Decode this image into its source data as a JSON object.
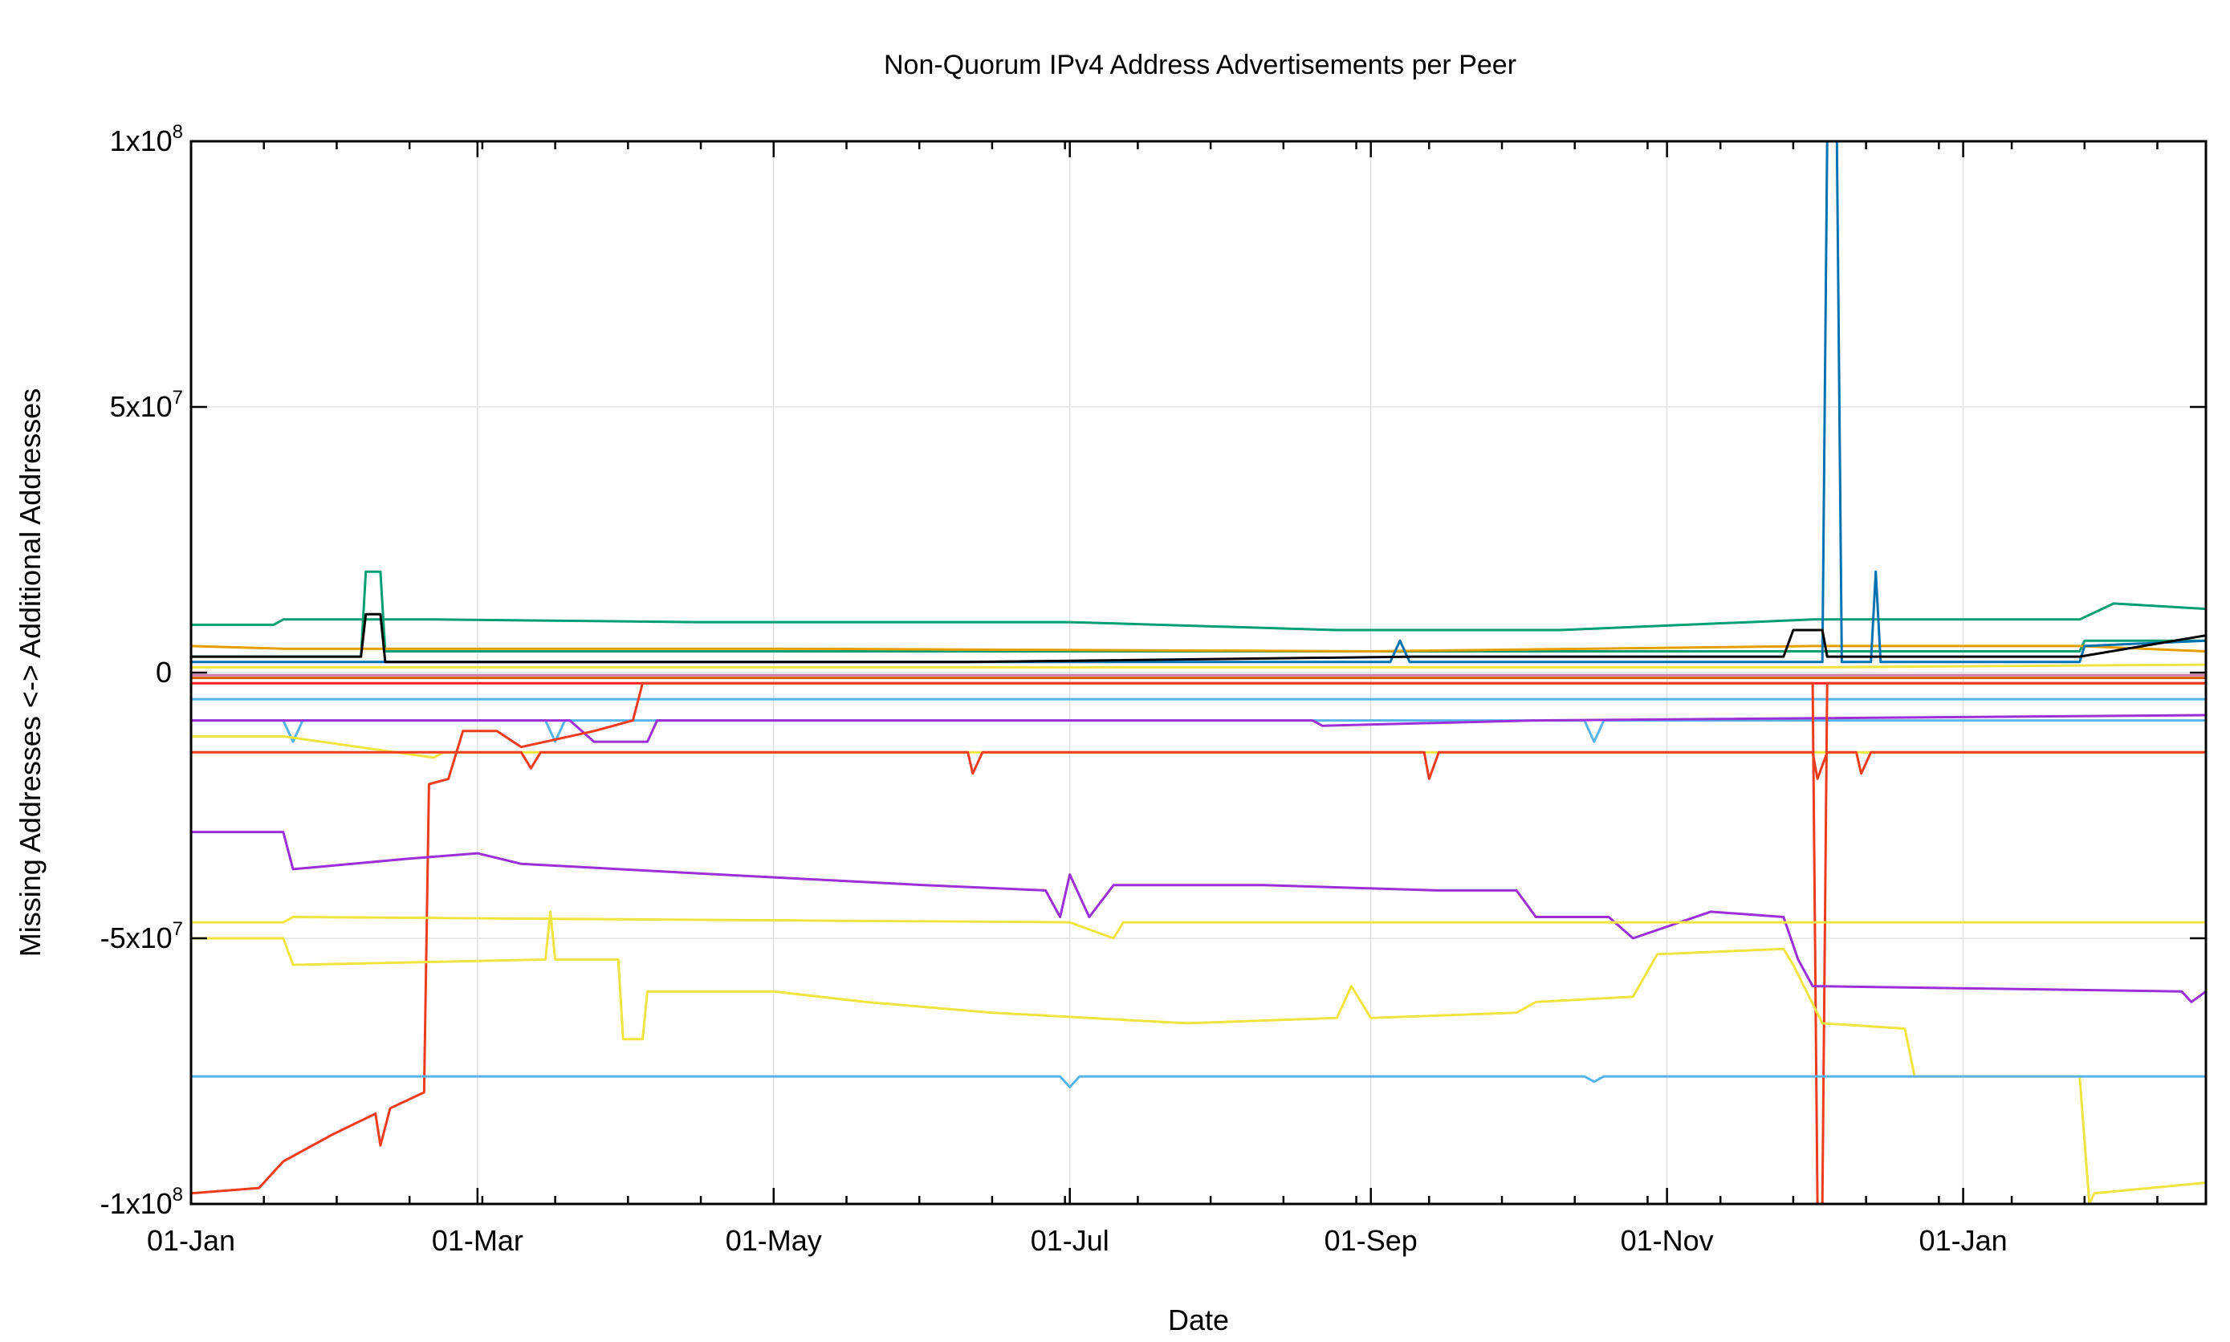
{
  "chart_data": {
    "type": "line",
    "title": "Non-Quorum IPv4 Address Advertisements per Peer",
    "xlabel": "Date",
    "ylabel": "Missing Addresses <-> Additional Addresses",
    "x_range": [
      "2015-01-01",
      "2016-02-20"
    ],
    "ylim": [
      -100000000,
      100000000
    ],
    "grid": true,
    "x_ticks": [
      {
        "date": "2015-01-01",
        "label": "01-Jan"
      },
      {
        "date": "2015-03-01",
        "label": "01-Mar"
      },
      {
        "date": "2015-05-01",
        "label": "01-May"
      },
      {
        "date": "2015-07-01",
        "label": "01-Jul"
      },
      {
        "date": "2015-09-01",
        "label": "01-Sep"
      },
      {
        "date": "2015-11-01",
        "label": "01-Nov"
      },
      {
        "date": "2016-01-01",
        "label": "01-Jan"
      }
    ],
    "y_ticks": [
      {
        "value": 100000000,
        "base": "1x10",
        "exp": "8"
      },
      {
        "value": 50000000,
        "base": "5x10",
        "exp": "7"
      },
      {
        "value": 0,
        "base": "0",
        "exp": ""
      },
      {
        "value": -50000000,
        "base": "-5x10",
        "exp": "7"
      },
      {
        "value": -100000000,
        "base": "-1x10",
        "exp": "8"
      }
    ],
    "series": [
      {
        "color": "#009e73",
        "points": [
          [
            "2015-01-01",
            9000000
          ],
          [
            "2015-01-18",
            9000000
          ],
          [
            "2015-01-20",
            10000000
          ],
          [
            "2015-02-20",
            10000000
          ],
          [
            "2015-04-15",
            9500000
          ],
          [
            "2015-07-01",
            9500000
          ],
          [
            "2015-08-25",
            8000000
          ],
          [
            "2015-10-10",
            8000000
          ],
          [
            "2015-12-01",
            10000000
          ],
          [
            "2016-01-25",
            10000000
          ],
          [
            "2016-02-01",
            13000000
          ],
          [
            "2016-02-20",
            12000000
          ]
        ]
      },
      {
        "color": "#009e73",
        "points": [
          [
            "2015-01-01",
            3000000
          ],
          [
            "2015-02-05",
            3000000
          ],
          [
            "2015-02-06",
            19000000
          ],
          [
            "2015-02-09",
            19000000
          ],
          [
            "2015-02-10",
            4000000
          ],
          [
            "2015-12-15",
            4000000
          ],
          [
            "2016-01-25",
            4000000
          ],
          [
            "2016-01-26",
            6000000
          ],
          [
            "2016-02-20",
            6000000
          ]
        ]
      },
      {
        "color": "#e69f00",
        "points": [
          [
            "2015-01-01",
            5000000
          ],
          [
            "2015-01-20",
            4500000
          ],
          [
            "2015-05-01",
            4500000
          ],
          [
            "2015-09-01",
            4000000
          ],
          [
            "2015-12-01",
            5000000
          ],
          [
            "2016-01-25",
            5000000
          ],
          [
            "2016-02-20",
            4000000
          ]
        ]
      },
      {
        "color": "#0072b2",
        "points": [
          [
            "2015-01-01",
            2000000
          ],
          [
            "2015-09-05",
            2000000
          ],
          [
            "2015-09-07",
            6000000
          ],
          [
            "2015-09-09",
            2000000
          ],
          [
            "2015-12-03",
            2000000
          ],
          [
            "2015-12-04",
            100000000
          ],
          [
            "2015-12-06",
            100000000
          ],
          [
            "2015-12-07",
            2000000
          ],
          [
            "2015-12-13",
            2000000
          ],
          [
            "2015-12-14",
            19000000
          ],
          [
            "2015-12-15",
            2000000
          ],
          [
            "2016-01-25",
            2000000
          ],
          [
            "2016-01-26",
            5000000
          ],
          [
            "2016-02-20",
            6000000
          ]
        ]
      },
      {
        "color": "#000000",
        "points": [
          [
            "2015-01-01",
            3000000
          ],
          [
            "2015-02-05",
            3000000
          ],
          [
            "2015-02-06",
            11000000
          ],
          [
            "2015-02-09",
            11000000
          ],
          [
            "2015-02-10",
            2000000
          ],
          [
            "2015-06-10",
            2000000
          ],
          [
            "2015-09-10",
            3000000
          ],
          [
            "2015-11-25",
            3000000
          ],
          [
            "2015-11-27",
            8000000
          ],
          [
            "2015-12-03",
            8000000
          ],
          [
            "2015-12-04",
            3000000
          ],
          [
            "2016-01-25",
            3000000
          ],
          [
            "2016-02-20",
            7000000
          ]
        ]
      },
      {
        "color": "#f0e442",
        "points": [
          [
            "2015-01-01",
            1000000
          ],
          [
            "2015-12-01",
            1000000
          ],
          [
            "2016-02-20",
            1500000
          ]
        ]
      },
      {
        "color": "#cc79a7",
        "points": [
          [
            "2015-01-01",
            -500000
          ],
          [
            "2016-02-20",
            -500000
          ]
        ]
      },
      {
        "color": "#d55e00",
        "points": [
          [
            "2015-01-01",
            -1000000
          ],
          [
            "2016-02-20",
            -1000000
          ]
        ]
      },
      {
        "color": "#ff1f1f",
        "points": [
          [
            "2015-01-01",
            -2000000
          ],
          [
            "2016-02-20",
            -2000000
          ]
        ]
      },
      {
        "color": "#56b4e9",
        "points": [
          [
            "2015-01-01",
            -9000000
          ],
          [
            "2015-01-20",
            -9000000
          ],
          [
            "2015-01-22",
            -13000000
          ],
          [
            "2015-01-24",
            -9000000
          ],
          [
            "2015-03-15",
            -9000000
          ],
          [
            "2015-03-17",
            -13000000
          ],
          [
            "2015-03-19",
            -9000000
          ],
          [
            "2015-10-15",
            -9000000
          ],
          [
            "2015-10-17",
            -13000000
          ],
          [
            "2015-10-19",
            -9000000
          ],
          [
            "2016-02-20",
            -9000000
          ]
        ]
      },
      {
        "color": "#56b4e9",
        "points": [
          [
            "2015-01-01",
            -5000000
          ],
          [
            "2016-02-20",
            -5000000
          ]
        ]
      },
      {
        "color": "#9b30d9",
        "points": [
          [
            "2015-01-01",
            -9000000
          ],
          [
            "2015-03-20",
            -9000000
          ],
          [
            "2015-03-25",
            -13000000
          ],
          [
            "2015-04-05",
            -13000000
          ],
          [
            "2015-04-07",
            -9000000
          ],
          [
            "2015-08-20",
            -9000000
          ],
          [
            "2015-08-22",
            -10000000
          ],
          [
            "2015-10-05",
            -9000000
          ],
          [
            "2016-02-20",
            -8000000
          ]
        ]
      },
      {
        "color": "#f0e442",
        "points": [
          [
            "2015-01-01",
            -12000000
          ],
          [
            "2015-01-20",
            -12000000
          ],
          [
            "2015-02-20",
            -16000000
          ],
          [
            "2015-02-22",
            -15000000
          ],
          [
            "2016-02-20",
            -15000000
          ]
        ]
      },
      {
        "color": "#f03c1e",
        "points": [
          [
            "2015-01-01",
            -15000000
          ],
          [
            "2015-03-10",
            -15000000
          ],
          [
            "2015-03-12",
            -18000000
          ],
          [
            "2015-03-14",
            -15000000
          ],
          [
            "2015-06-10",
            -15000000
          ],
          [
            "2015-06-11",
            -19000000
          ],
          [
            "2015-06-13",
            -15000000
          ],
          [
            "2015-09-12",
            -15000000
          ],
          [
            "2015-09-13",
            -20000000
          ],
          [
            "2015-09-15",
            -15000000
          ],
          [
            "2015-12-01",
            -15000000
          ],
          [
            "2015-12-02",
            -20000000
          ],
          [
            "2015-12-04",
            -15000000
          ],
          [
            "2015-12-10",
            -15000000
          ],
          [
            "2015-12-11",
            -19000000
          ],
          [
            "2015-12-13",
            -15000000
          ],
          [
            "2016-02-20",
            -15000000
          ]
        ]
      },
      {
        "color": "#f03c1e",
        "points": [
          [
            "2015-01-01",
            -98000000
          ],
          [
            "2015-01-15",
            -97000000
          ],
          [
            "2015-01-20",
            -92000000
          ],
          [
            "2015-01-30",
            -87000000
          ],
          [
            "2015-02-08",
            -83000000
          ],
          [
            "2015-02-09",
            -89000000
          ],
          [
            "2015-02-11",
            -82000000
          ],
          [
            "2015-02-18",
            -79000000
          ],
          [
            "2015-02-19",
            -21000000
          ],
          [
            "2015-02-23",
            -20000000
          ],
          [
            "2015-02-26",
            -11000000
          ],
          [
            "2015-03-05",
            -11000000
          ],
          [
            "2015-03-10",
            -14000000
          ],
          [
            "2015-03-25",
            -11000000
          ],
          [
            "2015-04-02",
            -9000000
          ],
          [
            "2015-04-04",
            -2000000
          ],
          [
            "2015-12-01",
            -2000000
          ],
          [
            "2015-12-02",
            -100000000
          ],
          [
            "2015-12-03",
            -100000000
          ],
          [
            "2015-12-04",
            -2000000
          ],
          [
            "2016-02-20",
            -2000000
          ]
        ]
      },
      {
        "color": "#9b30d9",
        "points": [
          [
            "2015-01-01",
            -30000000
          ],
          [
            "2015-01-20",
            -30000000
          ],
          [
            "2015-01-22",
            -37000000
          ],
          [
            "2015-02-15",
            -35000000
          ],
          [
            "2015-03-01",
            -34000000
          ],
          [
            "2015-03-10",
            -36000000
          ],
          [
            "2015-04-20",
            -38000000
          ],
          [
            "2015-06-01",
            -40000000
          ],
          [
            "2015-06-26",
            -41000000
          ],
          [
            "2015-06-29",
            -46000000
          ],
          [
            "2015-07-01",
            -38000000
          ],
          [
            "2015-07-05",
            -46000000
          ],
          [
            "2015-07-10",
            -40000000
          ],
          [
            "2015-08-10",
            -40000000
          ],
          [
            "2015-09-15",
            -41000000
          ],
          [
            "2015-10-01",
            -41000000
          ],
          [
            "2015-10-05",
            -46000000
          ],
          [
            "2015-10-20",
            -46000000
          ],
          [
            "2015-10-25",
            -50000000
          ],
          [
            "2015-11-10",
            -45000000
          ],
          [
            "2015-11-25",
            -46000000
          ],
          [
            "2015-11-28",
            -54000000
          ],
          [
            "2015-12-01",
            -59000000
          ],
          [
            "2016-02-15",
            -60000000
          ],
          [
            "2016-02-17",
            -62000000
          ],
          [
            "2016-02-20",
            -60000000
          ]
        ]
      },
      {
        "color": "#f0e442",
        "points": [
          [
            "2015-01-01",
            -50000000
          ],
          [
            "2015-01-20",
            -50000000
          ],
          [
            "2015-01-22",
            -55000000
          ],
          [
            "2015-03-15",
            -54000000
          ],
          [
            "2015-03-16",
            -45000000
          ],
          [
            "2015-03-17",
            -54000000
          ],
          [
            "2015-03-30",
            -54000000
          ],
          [
            "2015-03-31",
            -69000000
          ],
          [
            "2015-04-04",
            -69000000
          ],
          [
            "2015-04-05",
            -60000000
          ],
          [
            "2015-05-01",
            -60000000
          ],
          [
            "2015-05-20",
            -62000000
          ],
          [
            "2015-06-15",
            -64000000
          ],
          [
            "2015-07-25",
            -66000000
          ],
          [
            "2015-08-25",
            -65000000
          ],
          [
            "2015-08-28",
            -59000000
          ],
          [
            "2015-09-01",
            -65000000
          ],
          [
            "2015-10-01",
            -64000000
          ],
          [
            "2015-10-05",
            -62000000
          ],
          [
            "2015-10-25",
            -61000000
          ],
          [
            "2015-10-30",
            -53000000
          ],
          [
            "2015-11-25",
            -52000000
          ],
          [
            "2015-11-27",
            -55000000
          ],
          [
            "2015-12-03",
            -66000000
          ],
          [
            "2015-12-20",
            -67000000
          ],
          [
            "2015-12-22",
            -76000000
          ],
          [
            "2016-01-25",
            -76000000
          ],
          [
            "2016-01-27",
            -100000000
          ],
          [
            "2016-01-28",
            -98000000
          ],
          [
            "2016-02-20",
            -96000000
          ]
        ]
      },
      {
        "color": "#f0e442",
        "points": [
          [
            "2015-01-01",
            -47000000
          ],
          [
            "2015-01-20",
            -47000000
          ],
          [
            "2015-01-22",
            -46000000
          ],
          [
            "2015-07-01",
            -47000000
          ],
          [
            "2015-07-10",
            -50000000
          ],
          [
            "2015-07-12",
            -47000000
          ],
          [
            "2016-02-20",
            -47000000
          ]
        ]
      },
      {
        "color": "#56b4e9",
        "points": [
          [
            "2015-01-01",
            -76000000
          ],
          [
            "2015-06-29",
            -76000000
          ],
          [
            "2015-07-01",
            -78000000
          ],
          [
            "2015-07-03",
            -76000000
          ],
          [
            "2015-10-15",
            -76000000
          ],
          [
            "2015-10-17",
            -77000000
          ],
          [
            "2015-10-19",
            -76000000
          ],
          [
            "2016-02-20",
            -76000000
          ]
        ]
      }
    ]
  }
}
